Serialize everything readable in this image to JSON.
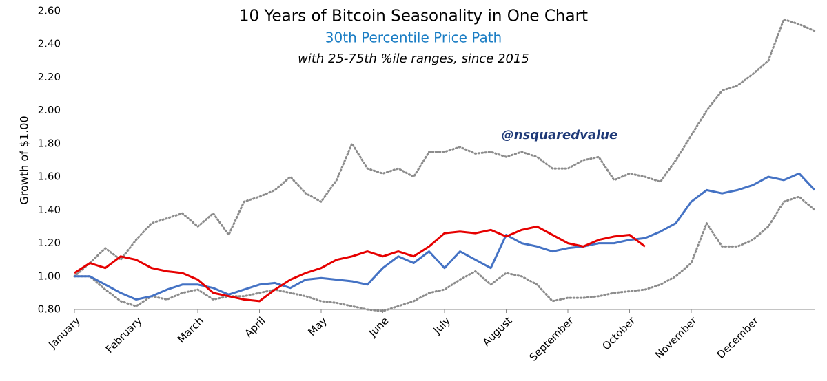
{
  "chart_data": {
    "type": "line",
    "title": "10 Years of Bitcoin Seasonality in One Chart",
    "subtitle": "30th Percentile Price Path",
    "subtitle2": "with 25-75th %ile ranges, since 2015",
    "annotation": "@nsquaredvalue",
    "ylabel": "Growth of $1.00",
    "categories": [
      "January",
      null,
      null,
      null,
      "February",
      null,
      null,
      null,
      "March",
      null,
      null,
      null,
      "April",
      null,
      null,
      null,
      "May",
      null,
      null,
      null,
      "June",
      null,
      null,
      null,
      "July",
      null,
      null,
      null,
      "August",
      null,
      null,
      null,
      "September",
      null,
      null,
      null,
      "October",
      null,
      null,
      null,
      "November",
      null,
      null,
      null,
      "December",
      null,
      null,
      null,
      null
    ],
    "series": [
      {
        "color": "#8c8c8c",
        "style": "dotted",
        "values": [
          1.0,
          1.08,
          1.17,
          1.1,
          1.22,
          1.32,
          1.35,
          1.38,
          1.3,
          1.38,
          1.25,
          1.45,
          1.48,
          1.52,
          1.6,
          1.5,
          1.45,
          1.58,
          1.8,
          1.65,
          1.62,
          1.65,
          1.6,
          1.75,
          1.75,
          1.78,
          1.74,
          1.75,
          1.72,
          1.75,
          1.72,
          1.65,
          1.65,
          1.7,
          1.72,
          1.58,
          1.62,
          1.6,
          1.57,
          1.7,
          1.85,
          2.0,
          2.12,
          2.15,
          2.22,
          2.3,
          2.55,
          2.52,
          2.48
        ]
      },
      {
        "color": "#8c8c8c",
        "style": "dotted",
        "values": [
          1.0,
          1.0,
          0.92,
          0.85,
          0.82,
          0.88,
          0.86,
          0.9,
          0.92,
          0.86,
          0.88,
          0.88,
          0.9,
          0.92,
          0.9,
          0.88,
          0.85,
          0.84,
          0.82,
          0.8,
          0.79,
          0.82,
          0.85,
          0.9,
          0.92,
          0.98,
          1.03,
          0.95,
          1.02,
          1.0,
          0.95,
          0.85,
          0.87,
          0.87,
          0.88,
          0.9,
          0.91,
          0.92,
          0.95,
          1.0,
          1.08,
          1.32,
          1.18,
          1.18,
          1.22,
          1.3,
          1.45,
          1.48,
          1.4
        ]
      },
      {
        "color": "#4472c4",
        "style": "solid",
        "values": [
          1.0,
          1.0,
          0.95,
          0.9,
          0.86,
          0.88,
          0.92,
          0.95,
          0.95,
          0.93,
          0.89,
          0.92,
          0.95,
          0.96,
          0.93,
          0.98,
          0.99,
          0.98,
          0.97,
          0.95,
          1.05,
          1.12,
          1.08,
          1.15,
          1.05,
          1.15,
          1.1,
          1.05,
          1.25,
          1.2,
          1.18,
          1.15,
          1.17,
          1.18,
          1.2,
          1.2,
          1.22,
          1.23,
          1.27,
          1.32,
          1.45,
          1.52,
          1.5,
          1.52,
          1.55,
          1.6,
          1.58,
          1.62,
          1.52
        ]
      },
      {
        "color": "#e60000",
        "style": "solid",
        "values": [
          1.02,
          1.08,
          1.05,
          1.12,
          1.1,
          1.05,
          1.03,
          1.02,
          0.98,
          0.9,
          0.88,
          0.86,
          0.85,
          0.92,
          0.98,
          1.02,
          1.05,
          1.1,
          1.12,
          1.15,
          1.12,
          1.15,
          1.12,
          1.18,
          1.26,
          1.27,
          1.26,
          1.28,
          1.24,
          1.28,
          1.3,
          1.25,
          1.2,
          1.18,
          1.22,
          1.24,
          1.25,
          1.18,
          null,
          null,
          null,
          null,
          null,
          null,
          null,
          null,
          null,
          null,
          null
        ]
      }
    ],
    "ylim": [
      0.8,
      2.6
    ],
    "yticks": [
      {
        "value": 0.8,
        "label": "0.80"
      },
      {
        "value": 1.0,
        "label": "1.00"
      },
      {
        "value": 1.2,
        "label": "1.20"
      },
      {
        "value": 1.4,
        "label": "1.40"
      },
      {
        "value": 1.6,
        "label": "1.60"
      },
      {
        "value": 1.8,
        "label": "1.80"
      },
      {
        "value": 2.0,
        "label": "2.00"
      },
      {
        "value": 2.2,
        "label": "2.20"
      },
      {
        "value": 2.4,
        "label": "2.40"
      },
      {
        "value": 2.6,
        "label": "2.60"
      }
    ],
    "grid": false
  }
}
